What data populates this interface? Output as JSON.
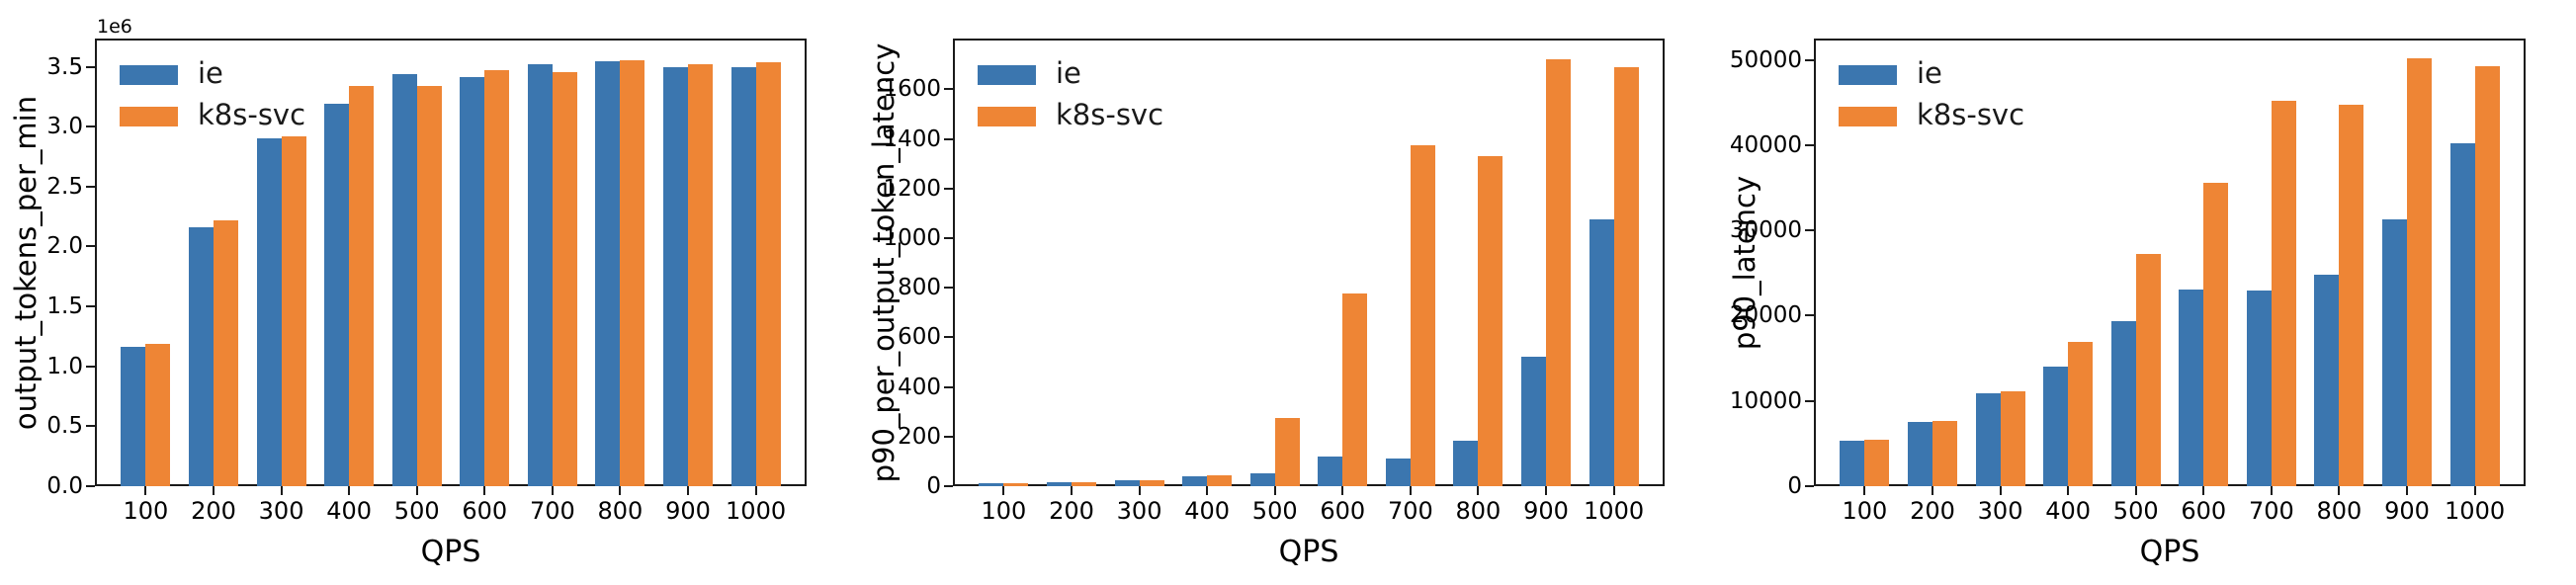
{
  "figure": {
    "background": "#ffffff",
    "axis_color": "#1a1a1a",
    "text_color": "#000000"
  },
  "series_colors": {
    "ie": "#3B76AF",
    "k8s-svc": "#EE8535"
  },
  "legend": {
    "labels": [
      "ie",
      "k8s-svc"
    ]
  },
  "chart_data": [
    {
      "type": "bar",
      "title": "",
      "xlabel": "QPS",
      "ylabel": "output_tokens_per_min",
      "y_offset_label": "1e6",
      "grid": false,
      "legend_position": "upper-left",
      "categories": [
        "100",
        "200",
        "300",
        "400",
        "500",
        "600",
        "700",
        "800",
        "900",
        "1000"
      ],
      "series": [
        {
          "name": "ie",
          "color": "#3B76AF",
          "values": [
            1160000,
            2160000,
            2900000,
            3190000,
            3440000,
            3415000,
            3520000,
            3545000,
            3500000,
            3495000
          ]
        },
        {
          "name": "k8s-svc",
          "color": "#EE8535",
          "values": [
            1190000,
            2220000,
            2915000,
            3340000,
            3340000,
            3470000,
            3455000,
            3555000,
            3520000,
            3535000
          ]
        }
      ],
      "ylim": [
        0,
        3735000
      ],
      "yticks": [
        0,
        500000,
        1000000,
        1500000,
        2000000,
        2500000,
        3000000,
        3500000
      ],
      "ytick_labels": [
        "0.0",
        "0.5",
        "1.0",
        "1.5",
        "2.0",
        "2.5",
        "3.0",
        "3.5"
      ]
    },
    {
      "type": "bar",
      "title": "",
      "xlabel": "QPS",
      "ylabel": "p90_per_output_token_latency",
      "y_offset_label": "",
      "grid": false,
      "legend_position": "upper-left",
      "categories": [
        "100",
        "200",
        "300",
        "400",
        "500",
        "600",
        "700",
        "800",
        "900",
        "1000"
      ],
      "series": [
        {
          "name": "ie",
          "color": "#3B76AF",
          "values": [
            10,
            17,
            25,
            38,
            50,
            120,
            113,
            185,
            520,
            1075
          ]
        },
        {
          "name": "k8s-svc",
          "color": "#EE8535",
          "values": [
            10,
            17,
            25,
            42,
            275,
            775,
            1375,
            1330,
            1720,
            1690
          ]
        }
      ],
      "ylim": [
        0,
        1805
      ],
      "yticks": [
        0,
        200,
        400,
        600,
        800,
        1000,
        1200,
        1400,
        1600
      ],
      "ytick_labels": [
        "0",
        "200",
        "400",
        "600",
        "800",
        "1000",
        "1200",
        "1400",
        "1600"
      ]
    },
    {
      "type": "bar",
      "title": "",
      "xlabel": "QPS",
      "ylabel": "p90_latency",
      "y_offset_label": "",
      "grid": false,
      "legend_position": "upper-left",
      "categories": [
        "100",
        "200",
        "300",
        "400",
        "500",
        "600",
        "700",
        "800",
        "900",
        "1000"
      ],
      "series": [
        {
          "name": "ie",
          "color": "#3B76AF",
          "values": [
            5300,
            7500,
            10900,
            14000,
            19300,
            23100,
            22900,
            24800,
            31300,
            40200
          ]
        },
        {
          "name": "k8s-svc",
          "color": "#EE8535",
          "values": [
            5500,
            7700,
            11100,
            16900,
            27200,
            35600,
            45200,
            44700,
            50200,
            49300
          ]
        }
      ],
      "ylim": [
        0,
        52500
      ],
      "yticks": [
        0,
        10000,
        20000,
        30000,
        40000,
        50000
      ],
      "ytick_labels": [
        "0",
        "10000",
        "20000",
        "30000",
        "40000",
        "50000"
      ]
    }
  ]
}
